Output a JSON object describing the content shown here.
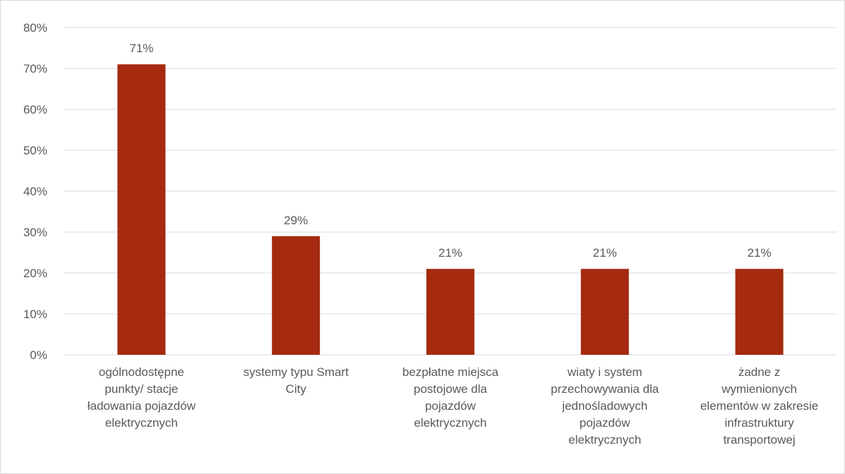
{
  "chart_data": {
    "type": "bar",
    "categories": [
      "ogólnodostępne punkty/ stacje ładowania pojazdów elektrycznych",
      "systemy typu Smart City",
      "bezpłatne miejsca postojowe dla pojazdów elektrycznych",
      "wiaty i system przechowywania dla jednośladowych pojazdów elektrycznych",
      "żadne z wymienionych elementów w zakresie infrastruktury transportowej"
    ],
    "category_lines": [
      [
        "ogólnodostępne",
        "punkty/ stacje",
        "ładowania pojazdów",
        "elektrycznych"
      ],
      [
        "systemy typu Smart",
        "City"
      ],
      [
        "bezpłatne miejsca",
        "postojowe dla",
        "pojazdów",
        "elektrycznych"
      ],
      [
        "wiaty i system",
        "przechowywania dla",
        "jednośladowych",
        "pojazdów",
        "elektrycznych"
      ],
      [
        "żadne z",
        "wymienionych",
        "elementów w zakresie",
        "infrastruktury",
        "transportowej"
      ]
    ],
    "values": [
      71,
      29,
      21,
      21,
      21
    ],
    "data_labels": [
      "71%",
      "29%",
      "21%",
      "21%",
      "21%"
    ],
    "title": "",
    "xlabel": "",
    "ylabel": "",
    "ylim": [
      0,
      80
    ],
    "yticks": [
      "0%",
      "10%",
      "20%",
      "30%",
      "40%",
      "50%",
      "60%",
      "70%",
      "80%"
    ],
    "grid": true,
    "legend": "none",
    "bar_color": "#a52a0f",
    "gridline_color": "#d9d9d9"
  }
}
